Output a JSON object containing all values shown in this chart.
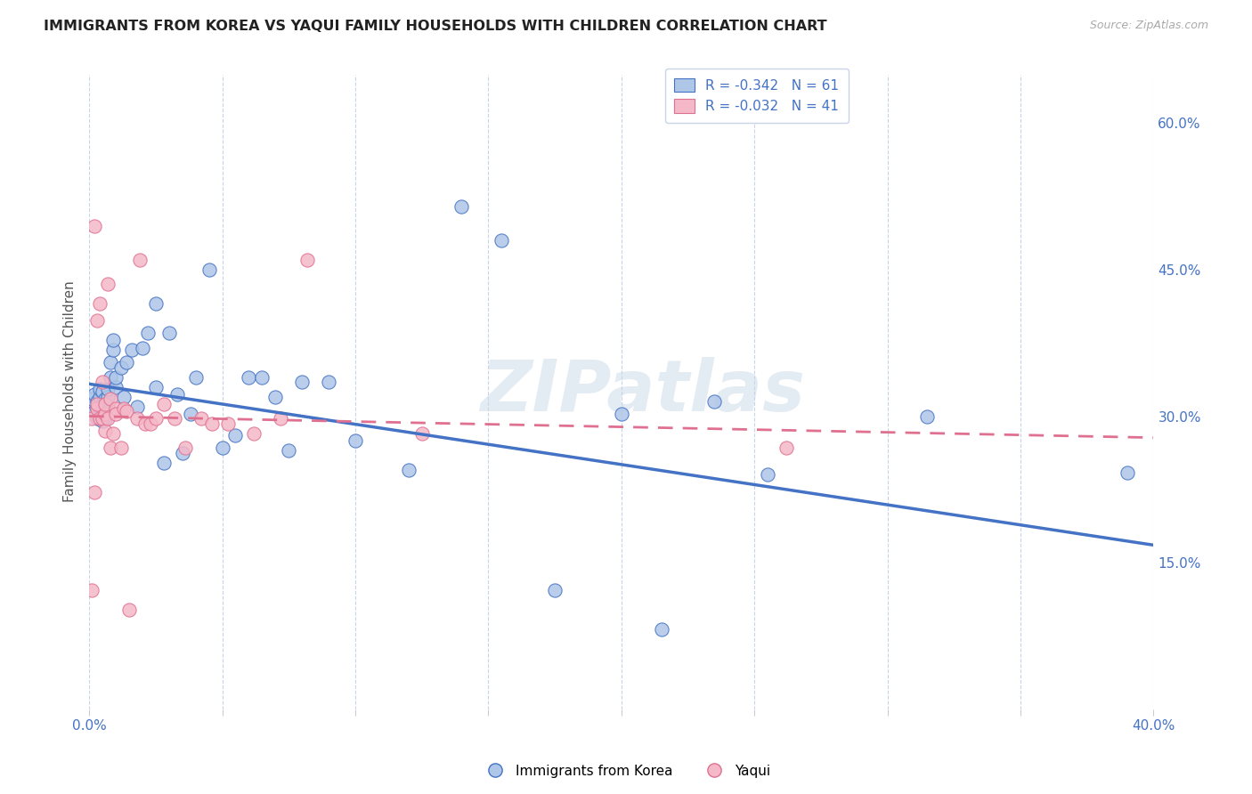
{
  "title": "IMMIGRANTS FROM KOREA VS YAQUI FAMILY HOUSEHOLDS WITH CHILDREN CORRELATION CHART",
  "source": "Source: ZipAtlas.com",
  "ylabel": "Family Households with Children",
  "xlim": [
    0.0,
    0.4
  ],
  "ylim": [
    0.0,
    0.65
  ],
  "xtick_pos": [
    0.0,
    0.05,
    0.1,
    0.15,
    0.2,
    0.25,
    0.3,
    0.35,
    0.4
  ],
  "xtick_labels": [
    "0.0%",
    "",
    "",
    "",
    "",
    "",
    "",
    "",
    "40.0%"
  ],
  "ytick_positions_right": [
    0.15,
    0.3,
    0.45,
    0.6
  ],
  "ytick_labels_right": [
    "15.0%",
    "30.0%",
    "45.0%",
    "60.0%"
  ],
  "korea_R": -0.342,
  "korea_N": 61,
  "yaqui_R": -0.032,
  "yaqui_N": 41,
  "korea_color": "#aec6e8",
  "korea_line_color": "#4472c4",
  "yaqui_color": "#f4b8c8",
  "yaqui_line_color": "#e07090",
  "background_color": "#ffffff",
  "grid_color": "#c8d4e8",
  "watermark": "ZIPatlas",
  "korea_line_start_y": 0.333,
  "korea_line_end_y": 0.168,
  "yaqui_line_start_y": 0.3,
  "yaqui_line_end_y": 0.278,
  "korea_scatter_x": [
    0.001,
    0.001,
    0.002,
    0.002,
    0.003,
    0.003,
    0.003,
    0.004,
    0.004,
    0.004,
    0.005,
    0.005,
    0.005,
    0.005,
    0.006,
    0.006,
    0.006,
    0.007,
    0.007,
    0.007,
    0.008,
    0.008,
    0.009,
    0.009,
    0.01,
    0.01,
    0.012,
    0.013,
    0.014,
    0.016,
    0.018,
    0.02,
    0.022,
    0.025,
    0.025,
    0.028,
    0.03,
    0.033,
    0.035,
    0.038,
    0.04,
    0.045,
    0.05,
    0.055,
    0.06,
    0.065,
    0.07,
    0.075,
    0.08,
    0.09,
    0.1,
    0.12,
    0.14,
    0.155,
    0.175,
    0.2,
    0.215,
    0.235,
    0.255,
    0.315,
    0.39
  ],
  "korea_scatter_y": [
    0.31,
    0.318,
    0.305,
    0.322,
    0.298,
    0.315,
    0.308,
    0.302,
    0.32,
    0.328,
    0.305,
    0.312,
    0.295,
    0.325,
    0.308,
    0.318,
    0.298,
    0.31,
    0.32,
    0.328,
    0.34,
    0.355,
    0.368,
    0.378,
    0.33,
    0.34,
    0.35,
    0.32,
    0.355,
    0.368,
    0.31,
    0.37,
    0.385,
    0.33,
    0.415,
    0.252,
    0.385,
    0.322,
    0.262,
    0.302,
    0.34,
    0.45,
    0.268,
    0.28,
    0.34,
    0.34,
    0.32,
    0.265,
    0.335,
    0.335,
    0.275,
    0.245,
    0.515,
    0.48,
    0.122,
    0.302,
    0.082,
    0.315,
    0.24,
    0.3,
    0.242
  ],
  "yaqui_scatter_x": [
    0.001,
    0.001,
    0.002,
    0.002,
    0.003,
    0.003,
    0.003,
    0.004,
    0.004,
    0.005,
    0.005,
    0.006,
    0.006,
    0.006,
    0.007,
    0.007,
    0.008,
    0.008,
    0.009,
    0.01,
    0.01,
    0.012,
    0.013,
    0.014,
    0.015,
    0.018,
    0.019,
    0.021,
    0.023,
    0.025,
    0.028,
    0.032,
    0.036,
    0.042,
    0.046,
    0.052,
    0.062,
    0.072,
    0.082,
    0.125,
    0.262
  ],
  "yaqui_scatter_y": [
    0.122,
    0.298,
    0.222,
    0.495,
    0.308,
    0.398,
    0.312,
    0.415,
    0.298,
    0.298,
    0.335,
    0.302,
    0.312,
    0.285,
    0.435,
    0.298,
    0.318,
    0.268,
    0.282,
    0.308,
    0.302,
    0.268,
    0.308,
    0.305,
    0.102,
    0.298,
    0.46,
    0.292,
    0.292,
    0.298,
    0.312,
    0.298,
    0.268,
    0.298,
    0.292,
    0.292,
    0.282,
    0.298,
    0.46,
    0.282,
    0.268
  ]
}
